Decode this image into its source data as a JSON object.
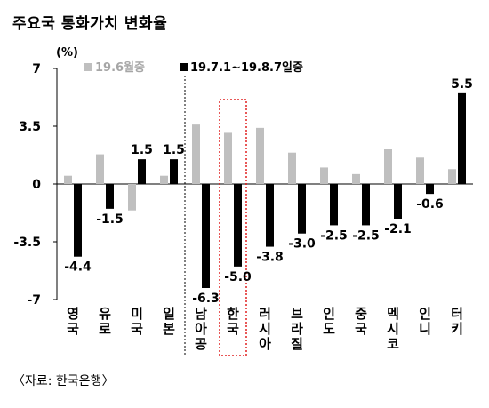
{
  "title": "주요국 통화가치 변화율",
  "source": "〈자료: 한국은행〉",
  "chart_data": {
    "type": "bar",
    "unit_label": "(%)",
    "categories": [
      "영국",
      "유로",
      "미국",
      "일본",
      "남아공",
      "한국",
      "러시아",
      "브라질",
      "인도",
      "중국",
      "멕시코",
      "인니",
      "터키"
    ],
    "series": [
      {
        "name": "19.6월중",
        "color": "#bfbfbf",
        "values": [
          0.5,
          1.8,
          -1.6,
          0.5,
          3.6,
          3.1,
          3.4,
          1.9,
          1.0,
          0.6,
          2.1,
          1.6,
          0.9
        ]
      },
      {
        "name": "19.7.1~19.8.7일중",
        "color": "#000000",
        "values": [
          -4.4,
          -1.5,
          1.5,
          1.5,
          -6.3,
          -5.0,
          -3.8,
          -3.0,
          -2.5,
          -2.5,
          -2.1,
          -0.6,
          5.5
        ],
        "data_labels": [
          "-4.4",
          "-1.5",
          "1.5",
          "1.5",
          "-6.3",
          "-5.0",
          "-3.8",
          "-3.0",
          "-2.5",
          "-2.5",
          "-2.1",
          "-0.6",
          "5.5"
        ]
      }
    ],
    "ylim": [
      -7,
      7
    ],
    "yticks": [
      "7",
      "3.5",
      "0",
      "-3.5",
      "-7"
    ],
    "ytick_values": [
      7,
      3.5,
      0,
      -3.5,
      -7
    ],
    "highlight_category": "한국",
    "divider_after_category": "일본",
    "legend_position": "top"
  }
}
